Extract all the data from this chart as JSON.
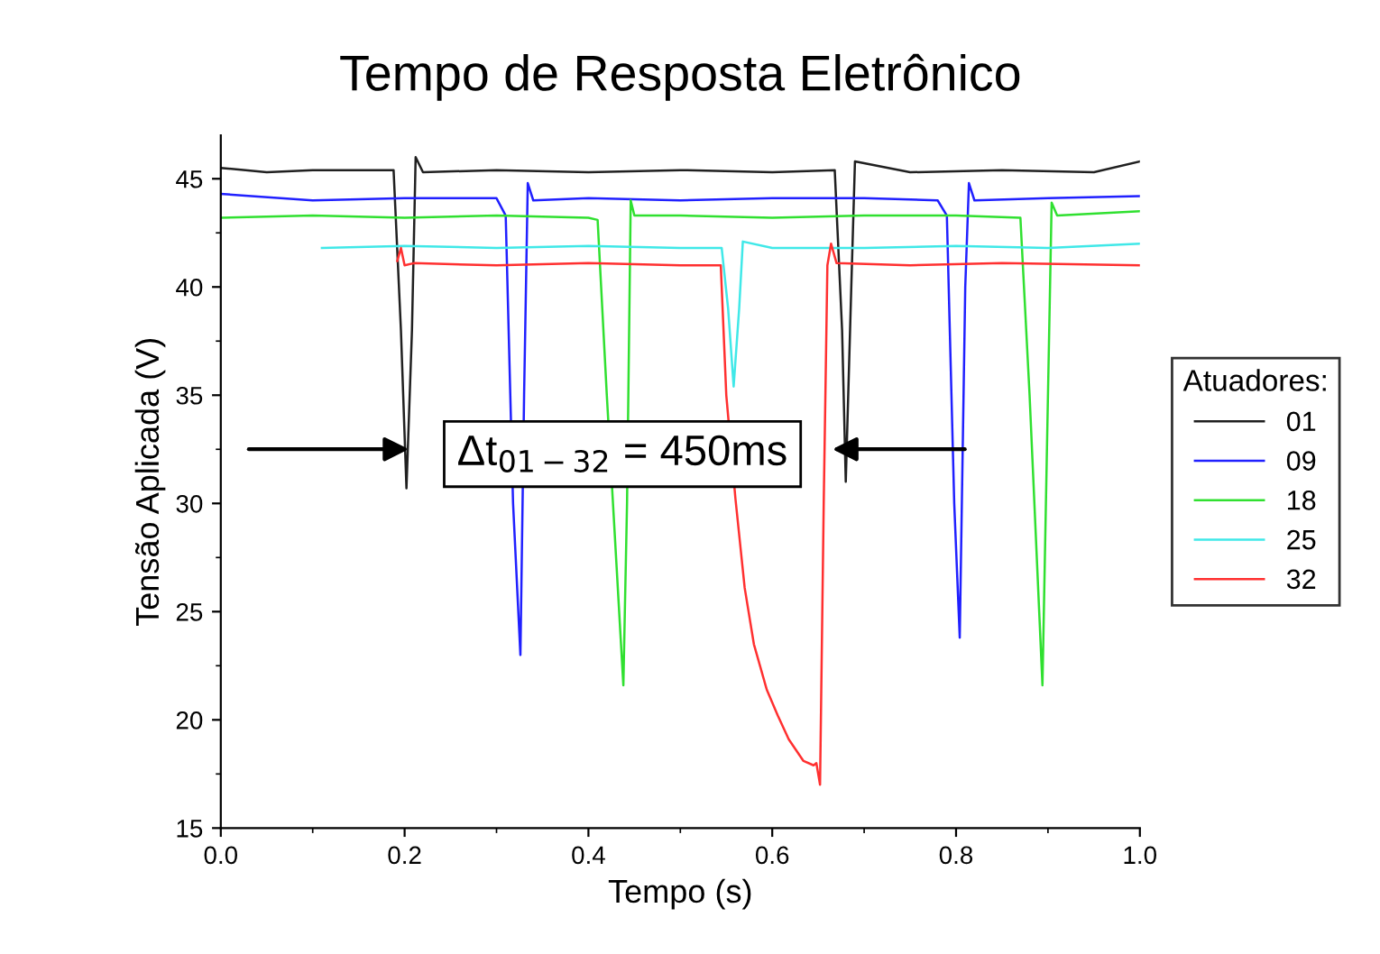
{
  "chart_data": {
    "type": "line",
    "title": "Tempo de Resposta Eletrônico",
    "xlabel": "Tempo (s)",
    "ylabel": "Tensão Aplicada (V)",
    "legend_title": "Atuadores:",
    "legend": "right",
    "grid": false,
    "xlim": [
      0,
      1
    ],
    "xticks": [
      {
        "value": 0,
        "label": "0.0"
      },
      0.2,
      0.4,
      0.6,
      0.8,
      {
        "value": 1,
        "label": "1.0"
      }
    ],
    "ylim": [
      15,
      47
    ],
    "yticks": [
      15,
      20,
      25,
      30,
      35,
      40,
      45
    ],
    "annotations": [
      "Δt$_{01−32}$ = 450ms"
    ],
    "series": [
      {
        "name": "01",
        "color": "#202020",
        "x": [
          0,
          0.05,
          0.1,
          0.15,
          0.188,
          0.196,
          0.202,
          0.208,
          0.212,
          0.22,
          0.3,
          0.4,
          0.5,
          0.6,
          0.668,
          0.676,
          0.68,
          0.686,
          0.69,
          0.75,
          0.85,
          0.95,
          1.0
        ],
        "values": [
          45.5,
          45.3,
          45.4,
          45.4,
          45.4,
          38,
          30.7,
          38,
          46,
          45.3,
          45.4,
          45.3,
          45.4,
          45.3,
          45.4,
          38,
          31,
          40,
          45.8,
          45.3,
          45.4,
          45.3,
          45.8
        ]
      },
      {
        "name": "09",
        "color": "#2020ff",
        "x": [
          0,
          0.1,
          0.2,
          0.3,
          0.31,
          0.318,
          0.326,
          0.33,
          0.334,
          0.34,
          0.4,
          0.5,
          0.6,
          0.7,
          0.78,
          0.79,
          0.798,
          0.804,
          0.81,
          0.814,
          0.82,
          0.9,
          1.0
        ],
        "values": [
          44.3,
          44,
          44.1,
          44.1,
          43.3,
          30,
          23,
          35,
          44.8,
          44,
          44.1,
          44,
          44.1,
          44.1,
          44,
          43.3,
          30,
          23.8,
          40,
          44.8,
          44,
          44.1,
          44.2
        ]
      },
      {
        "name": "18",
        "color": "#30e030",
        "x": [
          0,
          0.1,
          0.2,
          0.3,
          0.4,
          0.41,
          0.42,
          0.438,
          0.442,
          0.446,
          0.45,
          0.5,
          0.6,
          0.7,
          0.8,
          0.87,
          0.88,
          0.894,
          0.9,
          0.904,
          0.91,
          1.0
        ],
        "values": [
          43.2,
          43.3,
          43.2,
          43.3,
          43.2,
          43.1,
          35,
          21.6,
          30,
          44,
          43.3,
          43.3,
          43.2,
          43.3,
          43.3,
          43.2,
          35,
          21.6,
          35,
          43.9,
          43.3,
          43.5
        ]
      },
      {
        "name": "25",
        "color": "#40e8e8",
        "x": [
          0.11,
          0.2,
          0.3,
          0.4,
          0.5,
          0.545,
          0.552,
          0.558,
          0.564,
          0.568,
          0.6,
          0.7,
          0.8,
          0.9,
          1.0
        ],
        "values": [
          41.8,
          41.9,
          41.8,
          41.9,
          41.8,
          41.8,
          39,
          35.4,
          39,
          42.1,
          41.8,
          41.8,
          41.9,
          41.8,
          42.0
        ]
      },
      {
        "name": "32",
        "color": "#ff3030",
        "x": [
          0.192,
          0.196,
          0.2,
          0.21,
          0.3,
          0.4,
          0.5,
          0.544,
          0.55,
          0.56,
          0.57,
          0.58,
          0.594,
          0.606,
          0.618,
          0.634,
          0.645,
          0.648,
          0.652,
          0.656,
          0.66,
          0.664,
          0.67,
          0.75,
          0.85,
          1.0
        ],
        "values": [
          41.2,
          41.8,
          41.0,
          41.1,
          41.0,
          41.1,
          41.0,
          41.0,
          35,
          30.2,
          26.1,
          23.5,
          21.4,
          20.2,
          19.1,
          18.1,
          17.9,
          18.0,
          17.0,
          30,
          41,
          42.0,
          41.1,
          41.0,
          41.1,
          41.0
        ]
      }
    ]
  }
}
